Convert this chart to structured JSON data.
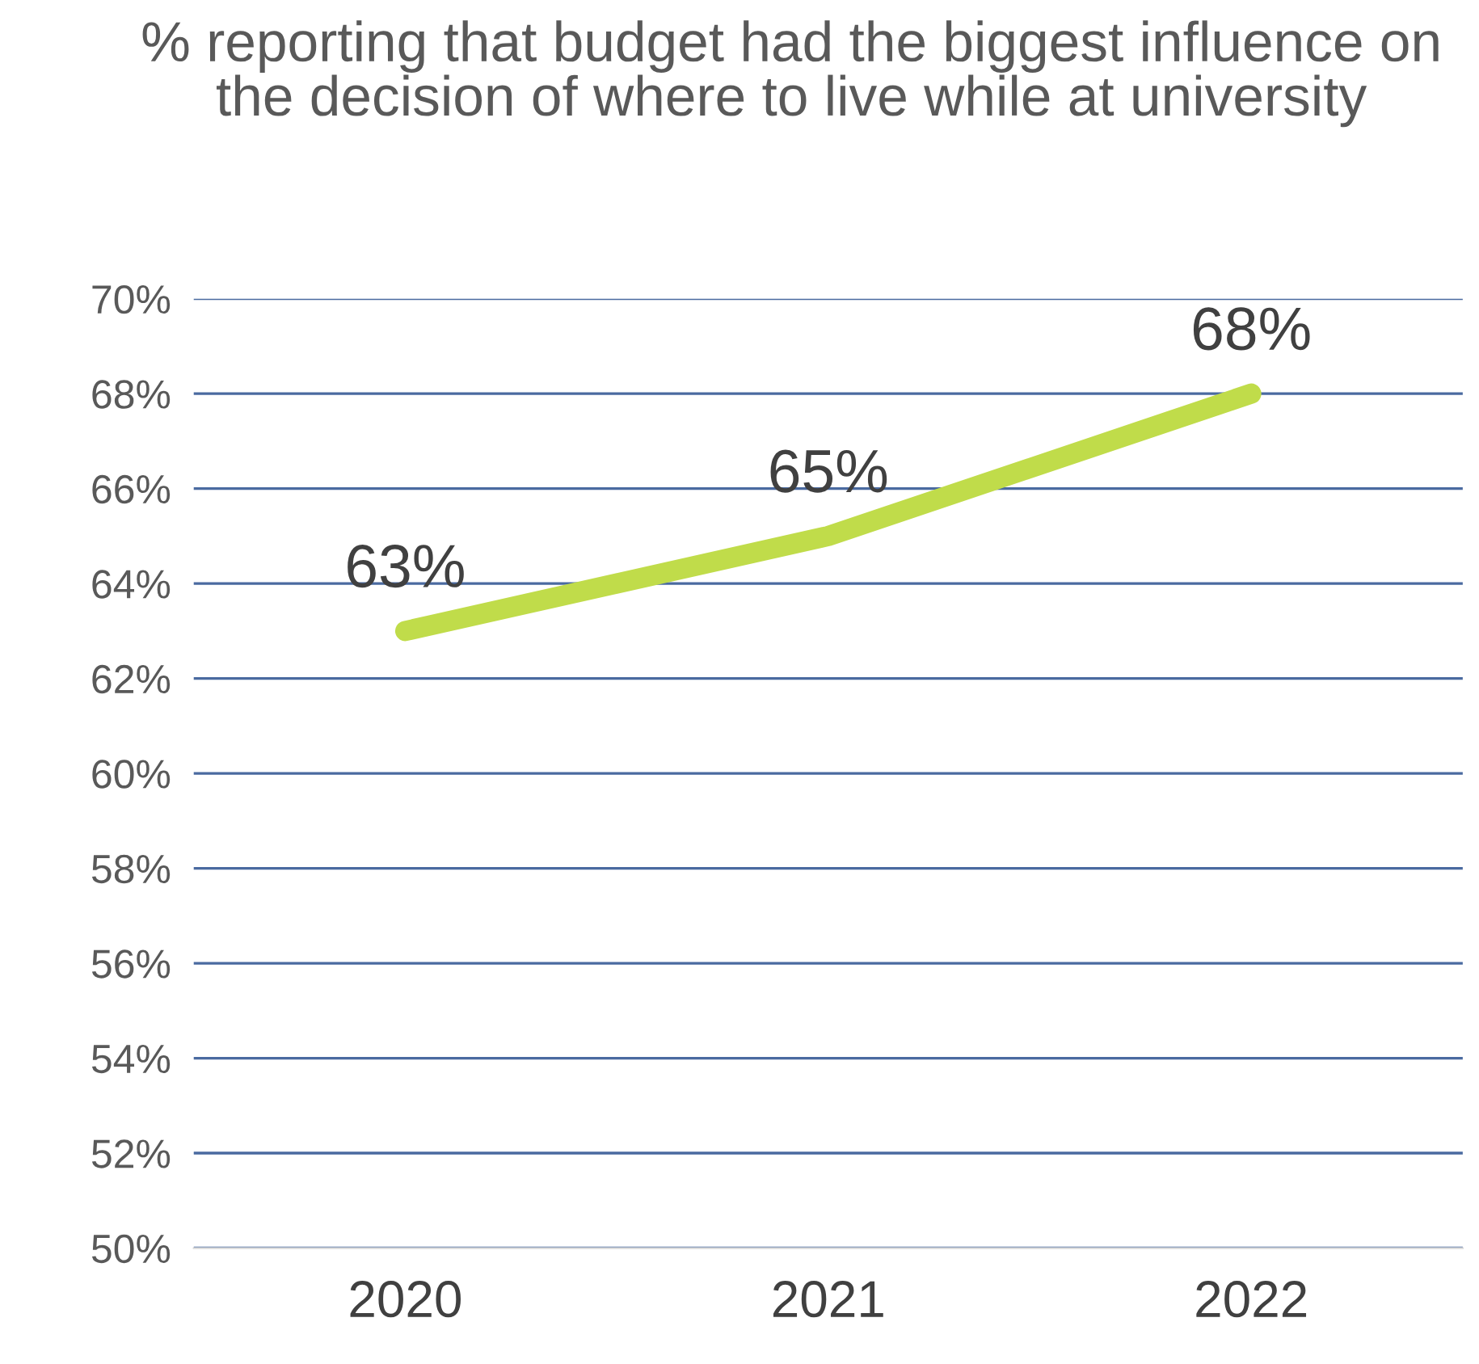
{
  "chart_data": {
    "type": "line",
    "title": "% reporting that budget had the biggest influence on the decision of where to live while at university",
    "categories": [
      "2020",
      "2021",
      "2022"
    ],
    "series": [
      {
        "color": "#c0dc4a",
        "values": [
          63,
          65,
          68
        ],
        "value_labels": [
          "63%",
          "65%",
          "68%"
        ]
      }
    ],
    "ylim": [
      50,
      70
    ],
    "yticks": [
      {
        "value": 50,
        "label": "50%"
      },
      {
        "value": 52,
        "label": "52%"
      },
      {
        "value": 54,
        "label": "54%"
      },
      {
        "value": 56,
        "label": "56%"
      },
      {
        "value": 58,
        "label": "58%"
      },
      {
        "value": 60,
        "label": "60%"
      },
      {
        "value": 62,
        "label": "62%"
      },
      {
        "value": 64,
        "label": "64%"
      },
      {
        "value": 66,
        "label": "66%"
      },
      {
        "value": 68,
        "label": "68%"
      },
      {
        "value": 70,
        "label": "70%"
      }
    ],
    "grid": "y"
  }
}
